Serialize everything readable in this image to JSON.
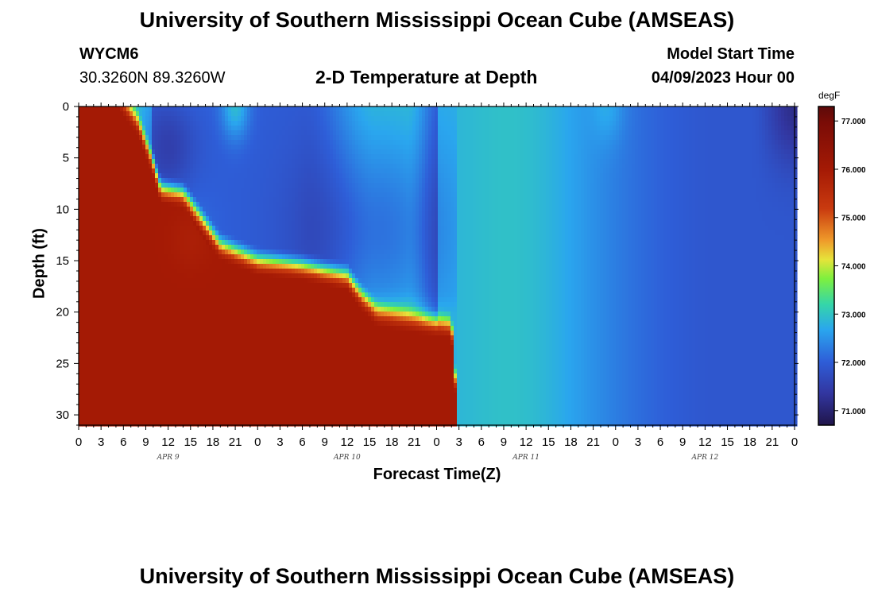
{
  "header": {
    "title": "University of Southern Mississippi Ocean Cube (AMSEAS)",
    "station": "WYCM6",
    "location": "30.3260N  89.3260W",
    "subtitle": "2-D Temperature at Depth",
    "model_start_label": "Model Start Time",
    "model_start_value": "04/09/2023 Hour 00"
  },
  "footer": {
    "title": "University of Southern Mississippi Ocean Cube (AMSEAS)"
  },
  "chart_data": {
    "type": "heatmap",
    "title": "2-D Temperature at Depth",
    "xlabel": "Forecast Time(Z)",
    "ylabel": "Depth (ft)",
    "x_hours_range": [
      0,
      96
    ],
    "x_tick_labels": [
      "0",
      "3",
      "6",
      "9",
      "12",
      "15",
      "18",
      "21",
      "0",
      "3",
      "6",
      "9",
      "12",
      "15",
      "18",
      "21",
      "0",
      "3",
      "6",
      "9",
      "12",
      "15",
      "18",
      "21",
      "0",
      "3",
      "6",
      "9",
      "12",
      "15",
      "18",
      "21",
      "0"
    ],
    "day_labels": [
      "APR 9",
      "APR 10",
      "APR 11",
      "APR 12"
    ],
    "y_range_ft": [
      0,
      31
    ],
    "y_ticks": [
      0,
      5,
      10,
      15,
      20,
      25,
      30
    ],
    "colorbar": {
      "unit": "degF",
      "range": [
        70.7,
        77.3
      ],
      "ticks": [
        "77.000",
        "76.000",
        "75.000",
        "74.000",
        "73.000",
        "72.000",
        "71.000"
      ]
    },
    "description_key_values": {
      "mixed_layer_warm_temp_degF": 76.0,
      "surface_temp_after_apr11_degF": 72.3,
      "coldest_surface_temp_apr12_end_degF": 70.9,
      "warm_bottom_layer_ends_hour": 50
    }
  }
}
